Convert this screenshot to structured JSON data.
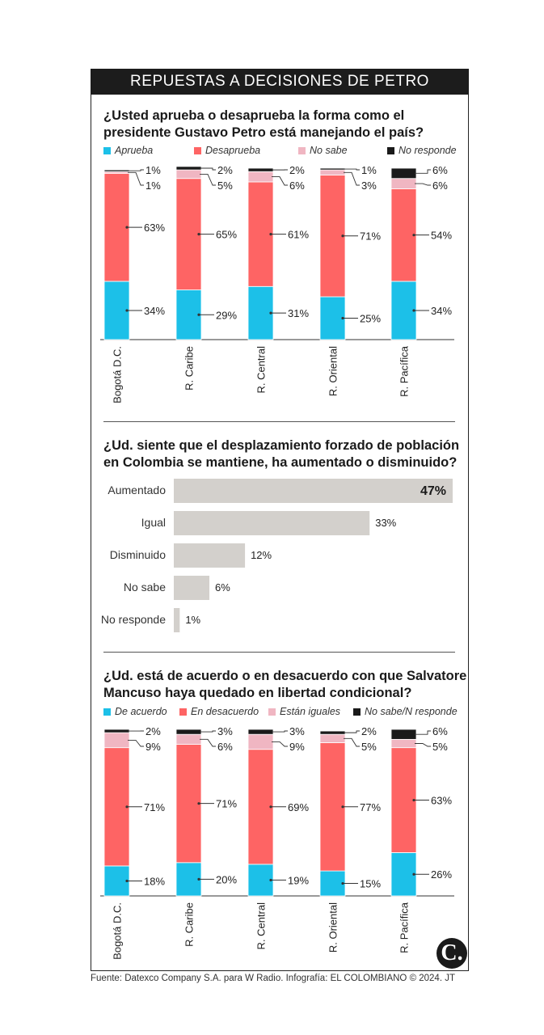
{
  "header": {
    "title": "REPUESTAS A DECISIONES DE PETRO"
  },
  "colors": {
    "blue": "#1cc0e8",
    "red": "#fe6464",
    "pink": "#f0b6c2",
    "black": "#1a1a1a",
    "gray": "#d3d0cc"
  },
  "chart_data": [
    {
      "type": "bar",
      "stacked": true,
      "title": "¿Usted aprueba o desaprueba la forma como el presidente Gustavo Petro está manejando el país?",
      "title_lines": [
        "¿Usted aprueba o desaprueba la forma como el",
        "presidente Gustavo Petro está manejando el país?"
      ],
      "categories": [
        "Bogotá D.C.",
        "R. Caribe",
        "R. Central",
        "R. Oriental",
        "R. Pacífica"
      ],
      "series": [
        {
          "name": "Aprueba",
          "color": "#1cc0e8",
          "values": [
            34,
            29,
            31,
            25,
            34
          ]
        },
        {
          "name": "Desaprueba",
          "color": "#fe6464",
          "values": [
            63,
            65,
            61,
            71,
            54
          ]
        },
        {
          "name": "No sabe",
          "color": "#f0b6c2",
          "values": [
            1,
            5,
            6,
            3,
            6
          ]
        },
        {
          "name": "No responde",
          "color": "#1a1a1a",
          "values": [
            1,
            2,
            2,
            1,
            6
          ]
        }
      ],
      "labels": [
        [
          "34%",
          "63%",
          "1%",
          "1%"
        ],
        [
          "29%",
          "65%",
          "5%",
          "2%"
        ],
        [
          "31%",
          "61%",
          "6%",
          "2%"
        ],
        [
          "25%",
          "71%",
          "3%",
          "1%"
        ],
        [
          "34%",
          "54%",
          "6%",
          "6%"
        ]
      ]
    },
    {
      "type": "bar",
      "orientation": "horizontal",
      "title": "¿Ud. siente que el desplazamiento forzado de población en Colombia se mantiene, ha aumentado o disminuido?",
      "title_lines": [
        "¿Ud. siente que el desplazamiento forzado de población",
        "en Colombia se mantiene, ha aumentado o disminuido?"
      ],
      "categories": [
        "Aumentado",
        "Igual",
        "Disminuido",
        "No sabe",
        "No responde"
      ],
      "values": [
        47,
        33,
        12,
        6,
        1
      ],
      "labels": [
        "47%",
        "33%",
        "12%",
        "6%",
        "1%"
      ],
      "color": "#d3d0cc"
    },
    {
      "type": "bar",
      "stacked": true,
      "title": "¿Ud. está de acuerdo o en desacuerdo con que Salvatore Mancuso haya quedado en libertad condicional?",
      "title_lines": [
        "¿Ud. está de acuerdo o en desacuerdo con que Salvatore",
        "Mancuso haya quedado en libertad condicional?"
      ],
      "categories": [
        "Bogotá D.C.",
        "R. Caribe",
        "R. Central",
        "R. Oriental",
        "R. Pacífica"
      ],
      "series": [
        {
          "name": "De acuerdo",
          "color": "#1cc0e8",
          "values": [
            18,
            20,
            19,
            15,
            26
          ]
        },
        {
          "name": "En desacuerdo",
          "color": "#fe6464",
          "values": [
            71,
            71,
            69,
            77,
            63
          ]
        },
        {
          "name": "Están iguales",
          "color": "#f0b6c2",
          "values": [
            9,
            6,
            9,
            5,
            5
          ]
        },
        {
          "name": "No sabe/N responde",
          "color": "#1a1a1a",
          "values": [
            2,
            3,
            3,
            2,
            6
          ]
        }
      ],
      "labels": [
        [
          "18%",
          "71%",
          "9%",
          "2%"
        ],
        [
          "20%",
          "71%",
          "6%",
          "3%"
        ],
        [
          "19%",
          "69%",
          "9%",
          "3%"
        ],
        [
          "15%",
          "77%",
          "5%",
          "2%"
        ],
        [
          "26%",
          "63%",
          "5%",
          "6%"
        ]
      ]
    }
  ],
  "footer": {
    "source": "Fuente: Datexco Company S.A. para W Radio. Infografía: EL COLOMBIANO © 2024. JT",
    "logo": "C."
  }
}
